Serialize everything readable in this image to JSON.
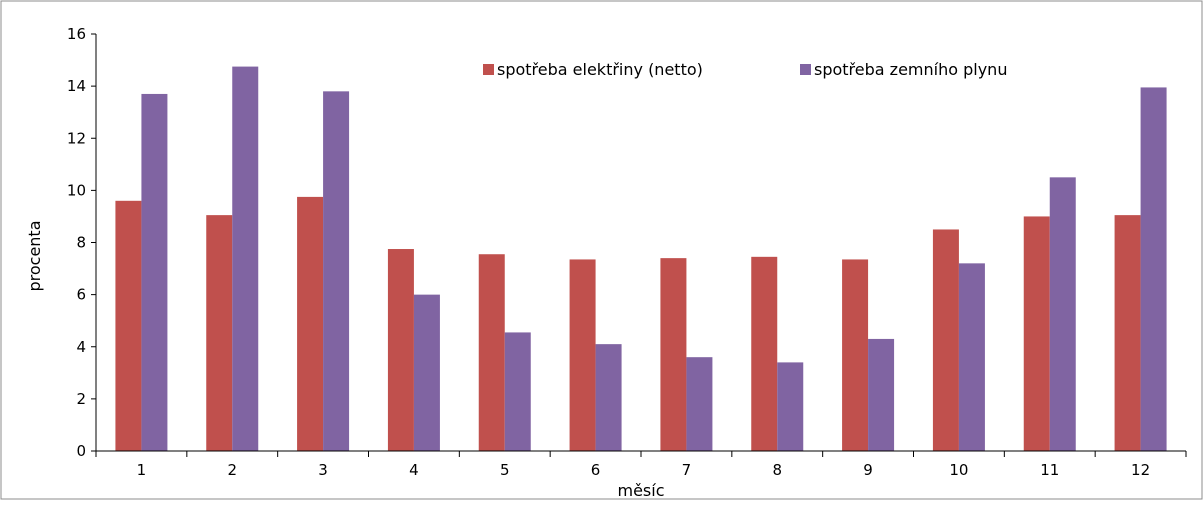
{
  "chart_data": {
    "type": "bar",
    "xlabel": "měsíc",
    "ylabel": "procenta",
    "ylim": [
      0,
      16
    ],
    "yticks": [
      0,
      2,
      4,
      6,
      8,
      10,
      12,
      14,
      16
    ],
    "grid": false,
    "legend_position": "top-center",
    "categories": [
      "1",
      "2",
      "3",
      "4",
      "5",
      "6",
      "7",
      "8",
      "9",
      "10",
      "11",
      "12"
    ],
    "series": [
      {
        "name": "spotřeba elektřiny (netto)",
        "color": "#c0504d",
        "values": [
          9.6,
          9.05,
          9.75,
          7.75,
          7.55,
          7.35,
          7.4,
          7.45,
          7.35,
          8.5,
          9.0,
          9.05
        ]
      },
      {
        "name": "spotřeba zemního plynu",
        "color": "#8064a2",
        "values": [
          13.7,
          14.75,
          13.8,
          6.0,
          4.55,
          4.1,
          3.6,
          3.4,
          4.3,
          7.2,
          10.5,
          13.95
        ]
      }
    ]
  }
}
